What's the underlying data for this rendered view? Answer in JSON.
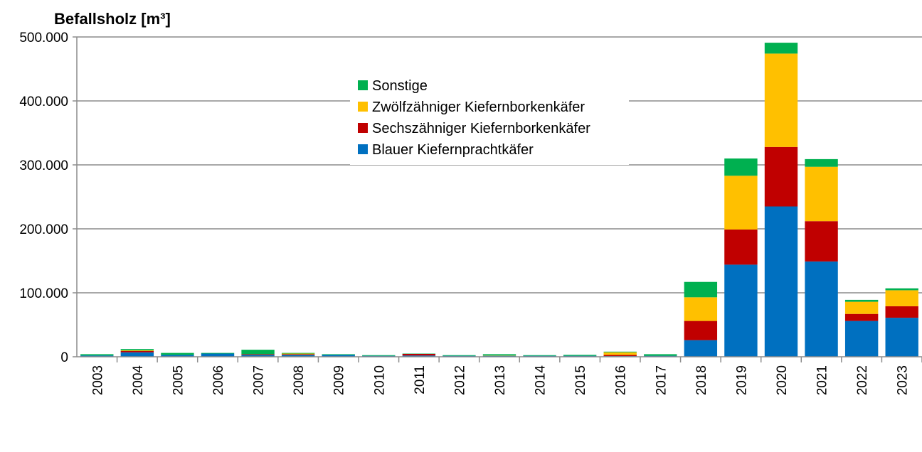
{
  "chart_data": {
    "type": "bar",
    "stacked": true,
    "title": "",
    "ylabel": "Befallsholz [m³]",
    "xlabel": "",
    "ylim": [
      0,
      500000
    ],
    "yticks": [
      0,
      100000,
      200000,
      300000,
      400000,
      500000
    ],
    "ytick_labels": [
      "0",
      "100.000",
      "200.000",
      "300.000",
      "400.000",
      "500.000"
    ],
    "grid": true,
    "legend_position": "top-center",
    "categories": [
      "2003",
      "2004",
      "2005",
      "2006",
      "2007",
      "2008",
      "2009",
      "2010",
      "2011",
      "2012",
      "2013",
      "2014",
      "2015",
      "2016",
      "2017",
      "2018",
      "2019",
      "2020",
      "2021",
      "2022",
      "2023"
    ],
    "series": [
      {
        "name": "Blauer Kiefernprachtkäfer",
        "color": "#0070c0",
        "values": [
          2000,
          7000,
          3000,
          5000,
          3000,
          3000,
          3000,
          1500,
          2000,
          1500,
          1500,
          1500,
          1500,
          1000,
          1500,
          26000,
          144000,
          235000,
          149000,
          56000,
          61000
        ]
      },
      {
        "name": "Sechszähniger Kiefernborkenkäfer",
        "color": "#c00000",
        "values": [
          0,
          2000,
          0,
          0,
          1000,
          1000,
          0,
          0,
          2500,
          0,
          0,
          0,
          0,
          2000,
          0,
          30000,
          55000,
          93000,
          63000,
          11000,
          18000
        ]
      },
      {
        "name": "Zwölfzähniger Kiefernborkenkäfer",
        "color": "#ffc000",
        "values": [
          0,
          1000,
          0,
          0,
          0,
          1000,
          0,
          0,
          0,
          0,
          500,
          0,
          0,
          4000,
          0,
          37000,
          84000,
          146000,
          85000,
          19000,
          25000
        ]
      },
      {
        "name": "Sonstige",
        "color": "#00b050",
        "values": [
          2000,
          2000,
          3000,
          1000,
          7000,
          1000,
          1000,
          1000,
          500,
          1000,
          2000,
          1000,
          1500,
          1000,
          2500,
          24000,
          27000,
          17000,
          12000,
          3000,
          3000
        ]
      }
    ]
  }
}
